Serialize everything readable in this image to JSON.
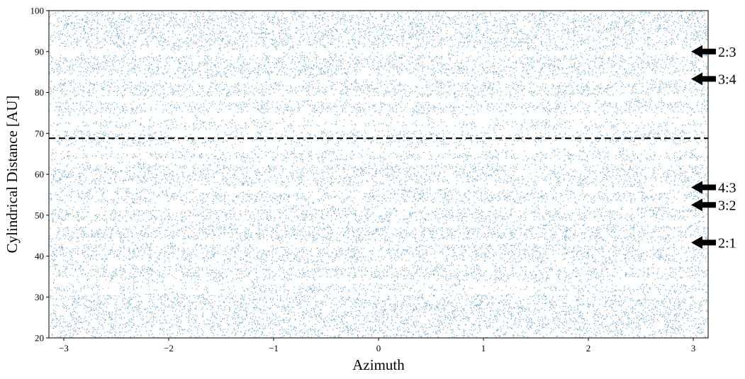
{
  "chart_data": {
    "type": "scatter",
    "title": "",
    "xlabel": "Azimuth",
    "ylabel": "Cylindrical Distance [AU]",
    "xlim": [
      -3.14159,
      3.14159
    ],
    "ylim": [
      20,
      100
    ],
    "xticks": [
      -3,
      -2,
      -1,
      0,
      1,
      2,
      3
    ],
    "xtick_labels": [
      "−3",
      "−2",
      "−1",
      "0",
      "1",
      "2",
      "3"
    ],
    "yticks": [
      20,
      30,
      40,
      50,
      60,
      70,
      80,
      90,
      100
    ],
    "ytick_labels": [
      "20",
      "30",
      "40",
      "50",
      "60",
      "70",
      "80",
      "90",
      "100"
    ],
    "grid": false,
    "marker_color": "#1f77b4",
    "reference_line": {
      "y": 68.8,
      "style": "dashed",
      "color": "#000000"
    },
    "gaps": [
      {
        "r": 90.0,
        "width": 0.9
      },
      {
        "r": 83.3,
        "width": 0.8
      },
      {
        "r": 78.5,
        "width": 0.8
      },
      {
        "r": 74.0,
        "width": 1.4
      },
      {
        "r": 71.0,
        "width": 0.6
      },
      {
        "r": 66.5,
        "width": 1.2
      },
      {
        "r": 63.0,
        "width": 0.7
      },
      {
        "r": 56.8,
        "width": 0.8
      },
      {
        "r": 52.5,
        "width": 0.8
      },
      {
        "r": 48.0,
        "width": 0.5
      },
      {
        "r": 43.3,
        "width": 0.6
      },
      {
        "r": 38.0,
        "width": 0.5
      },
      {
        "r": 33.5,
        "width": 0.9
      },
      {
        "r": 31.0,
        "width": 0.5
      }
    ],
    "annotations": [
      {
        "text": "2:3",
        "y": 90.0
      },
      {
        "text": "3:4",
        "y": 83.3
      },
      {
        "text": "4:3",
        "y": 56.8
      },
      {
        "text": "3:2",
        "y": 52.5
      },
      {
        "text": "2:1",
        "y": 43.3
      }
    ]
  }
}
